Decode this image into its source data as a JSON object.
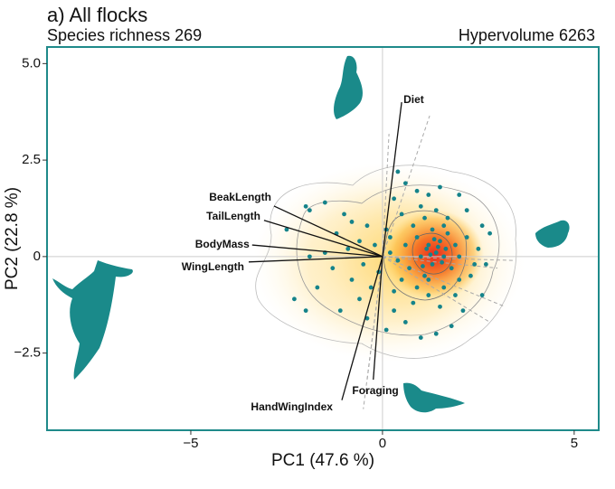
{
  "chart_data": {
    "type": "biplot",
    "title": "a) All flocks",
    "subtitle_left": "Species richness 269",
    "subtitle_right": "Hypervolume 6263",
    "xlabel": "PC1 (47.6 %)",
    "ylabel": "PC2 (22.8 %)",
    "xlim": [
      -8.75,
      5.64
    ],
    "ylim": [
      -4.5,
      5.43
    ],
    "xticks": [
      {
        "value": -5,
        "label": "−5"
      },
      0,
      5
    ],
    "yticks": [
      {
        "value": -2.5,
        "label": "−2.5"
      },
      0,
      2.5,
      {
        "value": 5,
        "label": "5.0"
      }
    ],
    "zero_lines": true,
    "frame_color": "#1f8a8a",
    "points": {
      "color": "#15838a",
      "x": [
        -2.0,
        -1.9,
        -1.5,
        -2.3,
        -2.5,
        -1.0,
        -0.8,
        -1.2,
        -0.6,
        -0.9,
        -1.5,
        -1.9,
        -1.3,
        -0.8,
        -1.7,
        -2.0,
        -1.1,
        -0.6,
        -0.3,
        -0.2,
        0.1,
        0.3,
        0.4,
        0.6,
        0.9,
        1.2,
        1.5,
        2.0,
        2.2,
        2.6,
        2.8,
        2.5,
        2.7,
        2.3,
        2.6,
        2.1,
        1.8,
        1.4,
        1.0,
        0.6,
        0.3,
        0.1,
        -0.4,
        0.8,
        1.2,
        1.6,
        2.0,
        1.1,
        0.7,
        0.4,
        0.2,
        0.6,
        0.9,
        1.2,
        1.4,
        1.6,
        1.3,
        1.5,
        1.7,
        1.9,
        2.0,
        1.8,
        1.0,
        0.8,
        1.1,
        1.4,
        1.7,
        1.3,
        1.0,
        0.5,
        0.2,
        -0.1,
        0.5,
        0.9,
        1.5,
        1.9,
        2.4,
        2.2,
        1.6,
        1.2,
        0.3,
        -0.4,
        -0.5,
        1.45,
        1.25,
        1.55,
        1.35,
        1.15,
        1.65,
        1.05
      ],
      "y": [
        1.3,
        1.2,
        1.4,
        -1.1,
        0.7,
        1.1,
        0.9,
        0.6,
        0.4,
        0.2,
        0.1,
        0.0,
        -0.3,
        -0.6,
        -0.8,
        -1.4,
        -1.4,
        -1.1,
        -0.8,
        0.3,
        0.7,
        1.5,
        2.2,
        1.9,
        1.7,
        1.6,
        1.8,
        1.6,
        1.2,
        0.8,
        0.6,
        0.2,
        -0.2,
        -0.5,
        -1.0,
        -1.4,
        -1.8,
        -2.0,
        -2.1,
        -1.7,
        -1.4,
        -1.9,
        -1.6,
        -1.2,
        -1.0,
        -0.8,
        -0.6,
        -0.5,
        -0.3,
        -0.1,
        0.1,
        0.3,
        0.5,
        0.3,
        0.1,
        0.0,
        -0.2,
        0.4,
        0.6,
        0.3,
        0.0,
        -0.3,
        0.0,
        0.8,
        1.0,
        1.2,
        1.0,
        0.7,
        1.3,
        1.1,
        0.5,
        -0.4,
        -0.6,
        -0.8,
        -1.3,
        -1.0,
        -0.2,
        0.5,
        0.8,
        -0.6,
        -0.9,
        0.8,
        -0.2,
        0.25,
        0.05,
        -0.15,
        0.45,
        0.2,
        0.2,
        -0.25
      ]
    },
    "loadings": [
      {
        "name": "Diet",
        "x": 0.5,
        "y": 4.0
      },
      {
        "name": "BeakLength",
        "x": -2.83,
        "y": 1.31
      },
      {
        "name": "TailLength",
        "x": -3.09,
        "y": 0.94
      },
      {
        "name": "BodyMass",
        "x": -3.4,
        "y": 0.3
      },
      {
        "name": "WingLength",
        "x": -3.49,
        "y": -0.14
      },
      {
        "name": "HandWingIndex",
        "x": -1.06,
        "y": -3.72
      },
      {
        "name": "Foraging",
        "x": -0.24,
        "y": -3.19
      }
    ],
    "other_loadings": {
      "x": [
        1.23,
        0.17,
        3.4,
        3.2,
        2.8,
        -0.5,
        -0.4,
        3.0
      ],
      "y": [
        3.65,
        3.18,
        -0.1,
        -1.3,
        -1.7,
        -3.95,
        -3.2,
        -0.3
      ]
    }
  }
}
